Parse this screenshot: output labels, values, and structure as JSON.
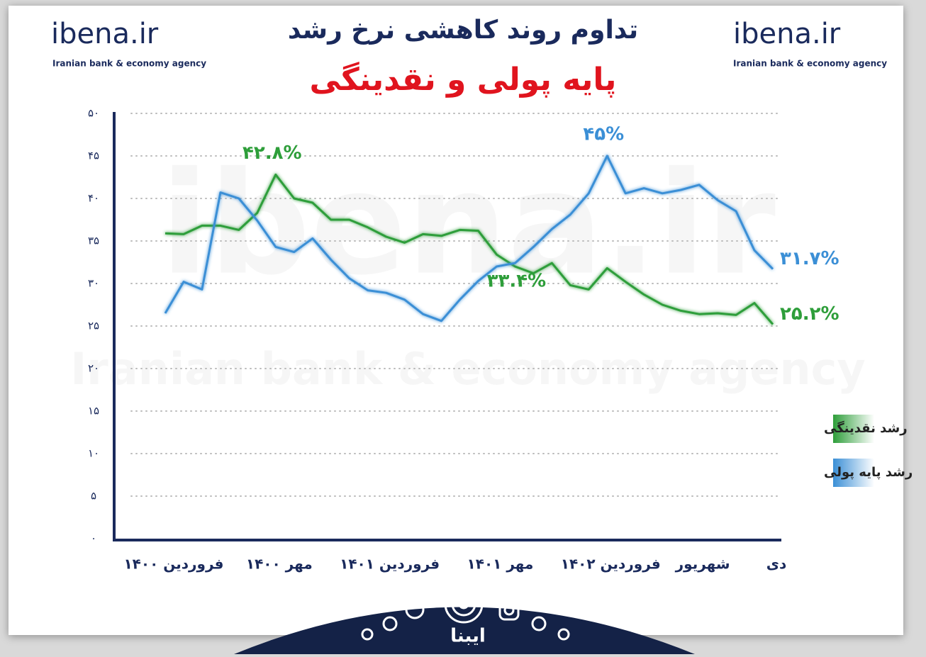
{
  "branding": {
    "site": "ibena.ir",
    "tagline": "Iranian bank & economy agency",
    "footer": "ایبنا"
  },
  "chart_data": {
    "type": "line",
    "title": "تداوم روند کاهشی نرخ رشد",
    "subtitle": "پایه پولی و نقدینگی",
    "categories": [
      "فروردین ۱۴۰۰",
      null,
      null,
      null,
      null,
      null,
      "مهر ۱۴۰۰",
      null,
      null,
      null,
      null,
      null,
      "فروردین ۱۴۰۱",
      null,
      null,
      null,
      null,
      null,
      "مهر ۱۴۰۱",
      null,
      null,
      null,
      null,
      null,
      "فروردین ۱۴۰۲",
      null,
      null,
      null,
      null,
      "شهریور",
      null,
      null,
      null,
      "دی"
    ],
    "series": [
      {
        "name": "رشد نقدینگی",
        "color": "#2e9e3a",
        "values": [
          35.9,
          35.8,
          36.8,
          36.8,
          36.3,
          38.3,
          42.8,
          40,
          39.5,
          37.5,
          37.5,
          36.6,
          35.5,
          34.8,
          35.8,
          35.6,
          36.3,
          36.2,
          33.4,
          32,
          31.2,
          32.4,
          29.8,
          29.3,
          31.8,
          30.2,
          28.7,
          27.5,
          26.8,
          26.4,
          26.5,
          26.3,
          27.7,
          25.2
        ],
        "value_labels": [
          null,
          null,
          null,
          null,
          null,
          null,
          "۴۲.۸%",
          null,
          null,
          null,
          null,
          null,
          null,
          null,
          null,
          null,
          null,
          null,
          "۳۳.۴%",
          null,
          null,
          null,
          null,
          null,
          null,
          null,
          null,
          null,
          null,
          null,
          null,
          null,
          null,
          "۲۵.۲%"
        ]
      },
      {
        "name": "رشد پایه پولی",
        "color": "#3b8fd6",
        "values": [
          26.5,
          30.2,
          29.3,
          40.7,
          40,
          37.4,
          34.3,
          33.7,
          35.3,
          32.8,
          30.6,
          29.2,
          28.9,
          28.1,
          26.4,
          25.6,
          28.1,
          30.3,
          32,
          32.4,
          34.3,
          36.4,
          38.1,
          40.6,
          45,
          40.6,
          41.2,
          40.6,
          41,
          41.6,
          39.8,
          38.5,
          33.9,
          31.7
        ],
        "value_labels": [
          null,
          null,
          null,
          null,
          null,
          null,
          null,
          null,
          null,
          null,
          null,
          null,
          null,
          null,
          null,
          null,
          null,
          null,
          null,
          null,
          null,
          null,
          null,
          null,
          "۴۵%",
          null,
          null,
          null,
          null,
          null,
          null,
          null,
          null,
          "۳۱.۷%"
        ]
      }
    ],
    "ylim": [
      0,
      50
    ],
    "yticks": [
      {
        "value": 0,
        "label": "۰"
      },
      {
        "value": 5,
        "label": "۵"
      },
      {
        "value": 10,
        "label": "۱۰"
      },
      {
        "value": 15,
        "label": "۱۵"
      },
      {
        "value": 20,
        "label": "۲۰"
      },
      {
        "value": 25,
        "label": "۲۵"
      },
      {
        "value": 30,
        "label": "۳۰"
      },
      {
        "value": 35,
        "label": "۳۵"
      },
      {
        "value": 40,
        "label": "۴۰"
      },
      {
        "value": 45,
        "label": "۴۵"
      },
      {
        "value": 50,
        "label": "۵۰"
      }
    ],
    "grid": true,
    "legend": "right"
  }
}
